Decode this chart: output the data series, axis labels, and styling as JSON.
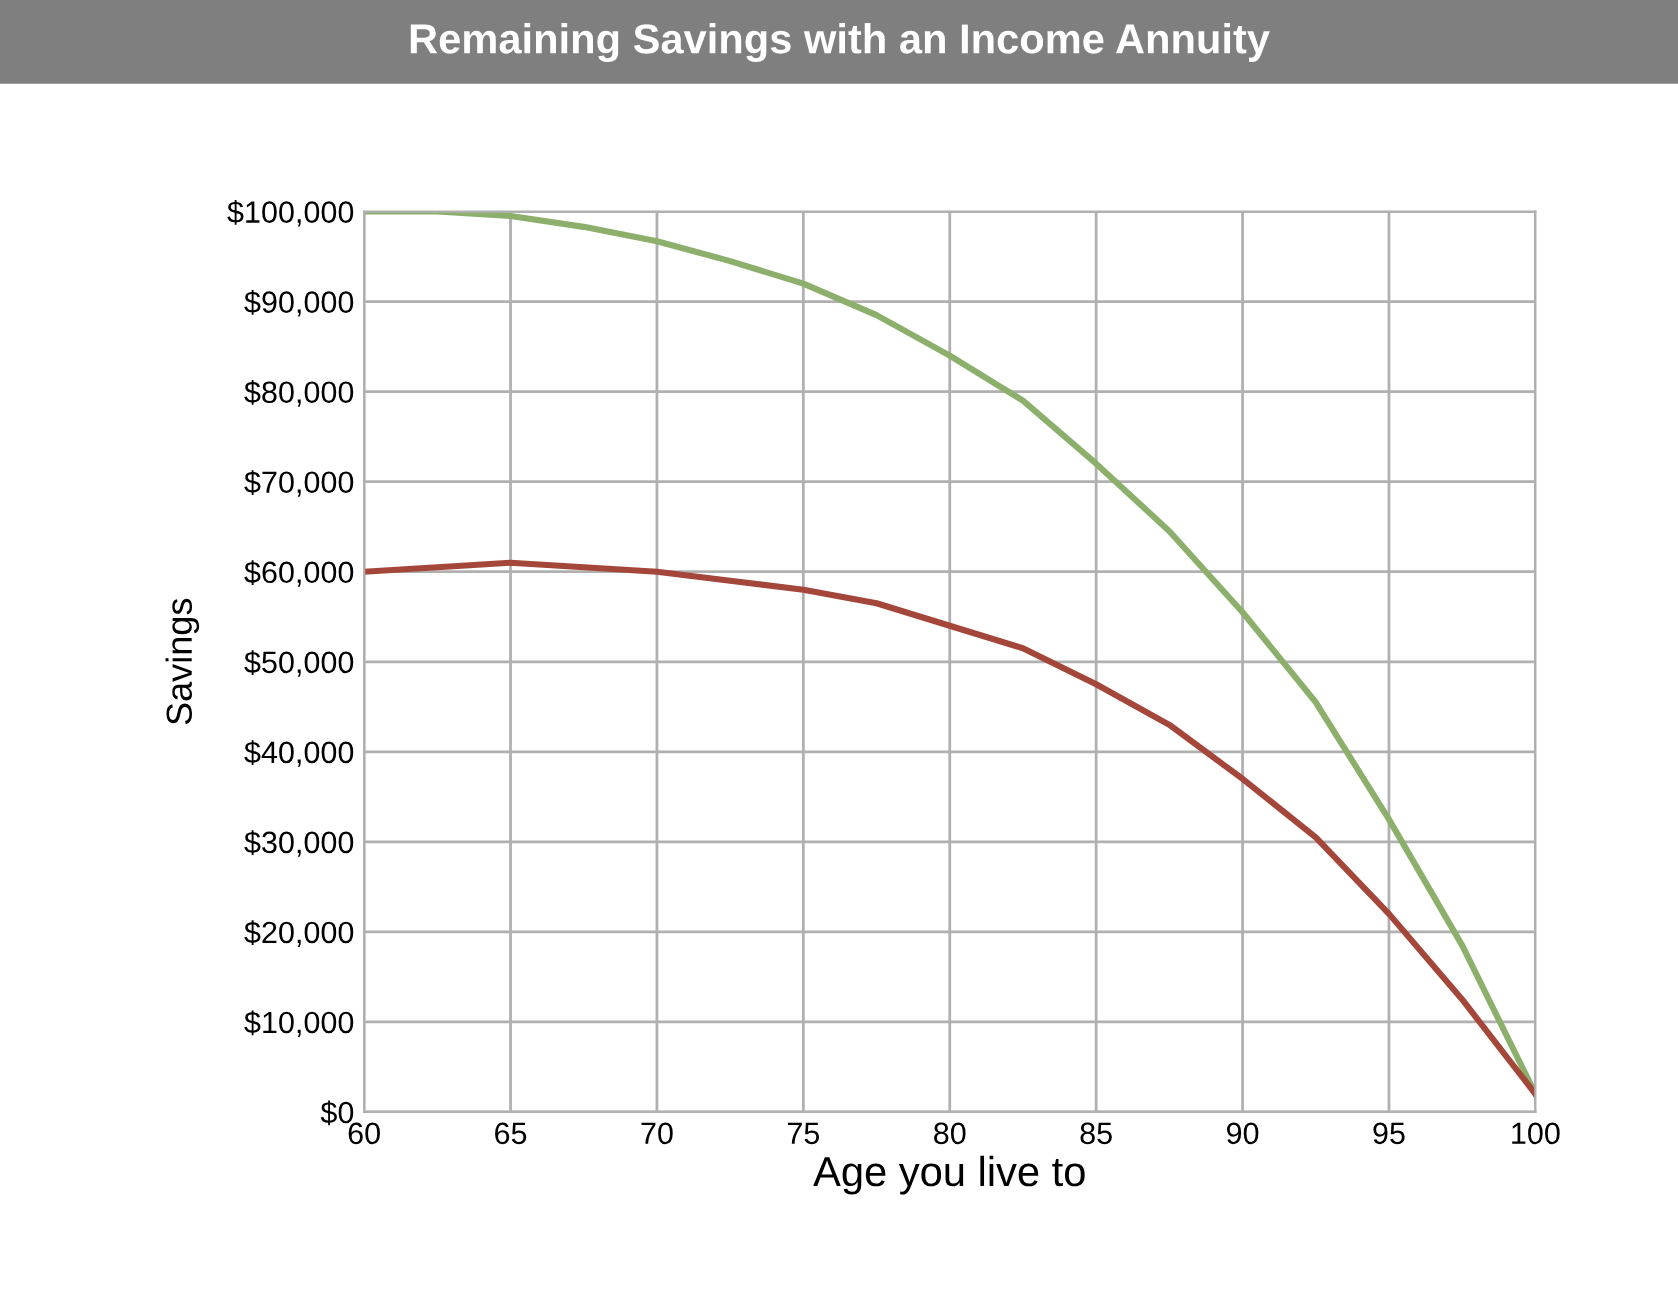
{
  "chart_data": {
    "type": "line",
    "title": "Remaining Savings with an Income Annuity",
    "xlabel": "Age you live to",
    "ylabel": "Savings",
    "x": [
      60,
      62.5,
      65,
      67.5,
      70,
      72.5,
      75,
      77.5,
      80,
      82.5,
      85,
      87.5,
      90,
      92.5,
      95,
      97.5,
      100
    ],
    "series": [
      {
        "color": "#8cb06c",
        "values": [
          100000,
          100000,
          99500,
          98300,
          96700,
          94500,
          92000,
          88500,
          84000,
          79000,
          72000,
          64500,
          55500,
          45500,
          32500,
          18500,
          2000
        ]
      },
      {
        "color": "#a4473a",
        "values": [
          60000,
          60500,
          61000,
          60500,
          60000,
          59000,
          58000,
          56500,
          54000,
          51500,
          47500,
          43000,
          37000,
          30500,
          22000,
          12500,
          2000
        ]
      }
    ],
    "xlim": [
      60,
      100
    ],
    "xticks": [
      60,
      65,
      70,
      75,
      80,
      85,
      90,
      95,
      100
    ],
    "ylim": [
      0,
      100000
    ],
    "yticks": [
      {
        "value": 0,
        "label": "$0"
      },
      {
        "value": 10000,
        "label": "$10,000"
      },
      {
        "value": 20000,
        "label": "$20,000"
      },
      {
        "value": 30000,
        "label": "$30,000"
      },
      {
        "value": 40000,
        "label": "$40,000"
      },
      {
        "value": 50000,
        "label": "$50,000"
      },
      {
        "value": 60000,
        "label": "$60,000"
      },
      {
        "value": 70000,
        "label": "$70,000"
      },
      {
        "value": 80000,
        "label": "$80,000"
      },
      {
        "value": 90000,
        "label": "$90,000"
      },
      {
        "value": 100000,
        "label": "$100,000"
      }
    ],
    "grid": true
  }
}
